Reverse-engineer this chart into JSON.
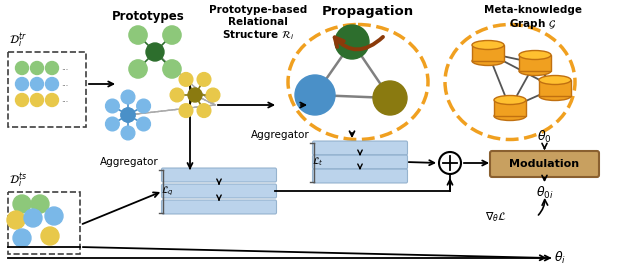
{
  "bg_color": "#ffffff",
  "label_prototypes": "Prototypes",
  "label_relational": "Prototype-based\nRelational\nStructure $\\mathcal{R}_i$",
  "label_propagation": "Propagation",
  "label_metagraph": "Meta-knowledge\nGraph $\\mathcal{G}$",
  "label_aggregator_top": "Aggregator",
  "label_aggregator_bot": "Aggregator",
  "label_Lt": "$\\mathcal{L}_t$",
  "label_Lq": "$\\mathcal{L}_q$",
  "label_modulation": "Modulation",
  "label_theta0": "$\\theta_0$",
  "label_theta0i": "$\\theta_{0i}$",
  "label_thetai": "$\\theta_i$",
  "label_grad": "$\\nabla_{\\theta}\\mathcal{L}$",
  "label_Dtr": "$\\mathcal{D}_i^{tr}$",
  "label_Dts": "$\\mathcal{D}_i^{ts}$",
  "colors": {
    "light_green": "#8dc87a",
    "blue": "#4a90c8",
    "light_blue": "#7ab8e8",
    "yellow": "#e8c84a",
    "orange": "#f0a020",
    "dark_green": "#2d6e2d",
    "olive": "#8a7a10",
    "bar_blue": "#b0cce8",
    "bar_border": "#8aaac8",
    "mod_fill": "#c8a060",
    "mod_border": "#8a6030",
    "circle_border": "#f0a020",
    "propagation_arrow": "#8b3a0a",
    "gray_edge": "#909090",
    "dark_edge": "#505050"
  }
}
